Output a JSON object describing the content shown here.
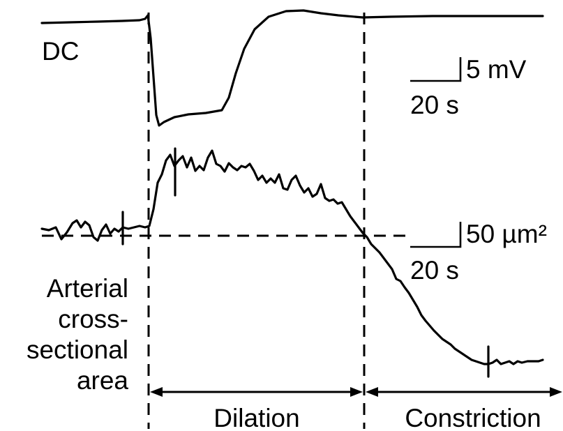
{
  "traces": {
    "dc": {
      "label": "DC"
    },
    "area": {
      "label_lines": [
        "Arterial",
        "cross-",
        "sectional",
        "area"
      ]
    }
  },
  "scale_bars": {
    "voltage": {
      "amplitude": "5 mV",
      "time": "20 s"
    },
    "area": {
      "amplitude": "50 µm²",
      "time": "20 s"
    }
  },
  "phases": [
    {
      "label": "Dilation"
    },
    {
      "label": "Constriction"
    }
  ]
}
